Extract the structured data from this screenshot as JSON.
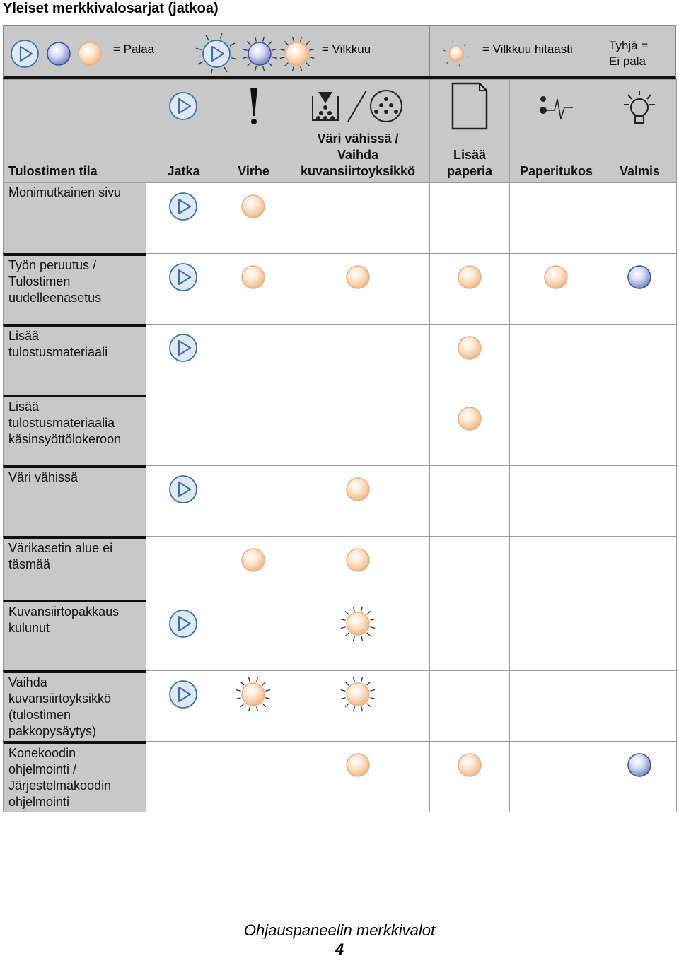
{
  "title": "Yleiset merkkivalosarjat (jatkoa)",
  "legend": {
    "on": "= Palaa",
    "blink": "= Vilkkuu",
    "slow": "= Vilkkuu hitaasti",
    "off": [
      "Tyhjä =",
      "Ei pala"
    ]
  },
  "table": {
    "header": [
      [
        "Tulostimen tila"
      ],
      [
        "Jatka"
      ],
      [
        "Virhe"
      ],
      [
        "Väri vähissä /",
        "Vaihda",
        "kuvansiirtoyksikkö"
      ],
      [
        "Lisää",
        "paperia"
      ],
      [
        "Paperitukos"
      ],
      [
        "Valmis"
      ]
    ],
    "rows": [
      [
        "Monimutkainen sivu"
      ],
      [
        "Työn peruutus /",
        "Tulostimen",
        "uudelleenasetus"
      ],
      [
        "Lisää",
        "tulostusmateriaali"
      ],
      [
        "Lisää",
        "tulostusmateriaalia",
        "käsinsyöttölokeroon"
      ],
      [
        "Väri vähissä"
      ],
      [
        "Värikasetin alue ei",
        "täsmää"
      ],
      [
        "Kuvansiirtopakkaus",
        "kulunut"
      ],
      [
        "Vaihda",
        "kuvansiirtoyksikkö",
        "(tulostimen",
        "pakkopysäytys)"
      ],
      [
        "Konekoodin",
        "ohjelmointi /",
        "Järjestelmäkoodin",
        "ohjelmointi"
      ]
    ]
  },
  "footer": {
    "caption": "Ohjauspaneelin merkkivalot",
    "page": "4"
  }
}
